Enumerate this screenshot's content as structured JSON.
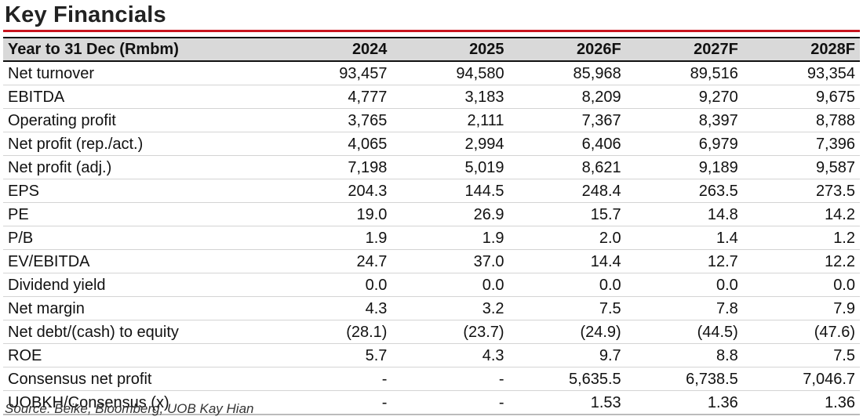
{
  "title": "Key Financials",
  "header": [
    "Year to 31 Dec (Rmbm)",
    "2024",
    "2025",
    "2026F",
    "2027F",
    "2028F"
  ],
  "rows": [
    [
      "Net turnover",
      "93,457",
      "94,580",
      "85,968",
      "89,516",
      "93,354"
    ],
    [
      "EBITDA",
      "4,777",
      "3,183",
      "8,209",
      "9,270",
      "9,675"
    ],
    [
      "Operating profit",
      "3,765",
      "2,111",
      "7,367",
      "8,397",
      "8,788"
    ],
    [
      "Net profit (rep./act.)",
      "4,065",
      "2,994",
      "6,406",
      "6,979",
      "7,396"
    ],
    [
      "Net profit (adj.)",
      "7,198",
      "5,019",
      "8,621",
      "9,189",
      "9,587"
    ],
    [
      "EPS",
      "204.3",
      "144.5",
      "248.4",
      "263.5",
      "273.5"
    ],
    [
      "PE",
      "19.0",
      "26.9",
      "15.7",
      "14.8",
      "14.2"
    ],
    [
      "P/B",
      "1.9",
      "1.9",
      "2.0",
      "1.4",
      "1.2"
    ],
    [
      "EV/EBITDA",
      "24.7",
      "37.0",
      "14.4",
      "12.7",
      "12.2"
    ],
    [
      "Dividend yield",
      "0.0",
      "0.0",
      "0.0",
      "0.0",
      "0.0"
    ],
    [
      "Net margin",
      "4.3",
      "3.2",
      "7.5",
      "7.8",
      "7.9"
    ],
    [
      "Net debt/(cash) to equity",
      "(28.1)",
      "(23.7)",
      "(24.9)",
      "(44.5)",
      "(47.6)"
    ],
    [
      "ROE",
      "5.7",
      "4.3",
      "9.7",
      "8.8",
      "7.5"
    ],
    [
      "Consensus net profit",
      "-",
      "-",
      "5,635.5",
      "6,738.5",
      "7,046.7"
    ],
    [
      "UOBKH/Consensus (x)",
      "-",
      "-",
      "1.53",
      "1.36",
      "1.36"
    ]
  ],
  "source": "Source: Beike, Bloomberg, UOB Kay Hian"
}
